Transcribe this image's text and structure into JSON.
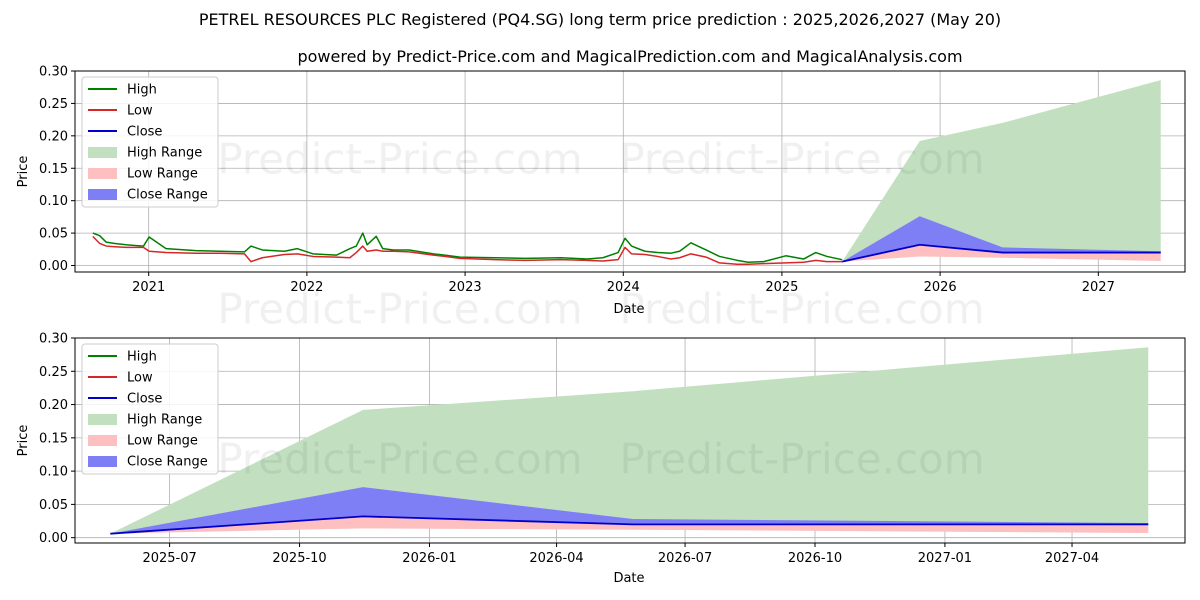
{
  "title": "PETREL RESOURCES PLC Registered (PQ4.SG) long term price prediction : 2025,2026,2027 (May 20)",
  "subtitle": "powered by Predict-Price.com and MagicalPrediction.com and MagicalAnalysis.com",
  "watermark": "Predict-Price.com",
  "colors": {
    "high": "#008000",
    "low": "#d62728",
    "close": "#0000cc",
    "high_range": "#c2e0c0",
    "low_range": "#fdbfbf",
    "close_range": "#7f7ff5",
    "grid": "#b0b0b0"
  },
  "legend": [
    {
      "key": "high",
      "label": "High",
      "kind": "line"
    },
    {
      "key": "low",
      "label": "Low",
      "kind": "line"
    },
    {
      "key": "close",
      "label": "Close",
      "kind": "line"
    },
    {
      "key": "high_range",
      "label": "High Range",
      "kind": "patch"
    },
    {
      "key": "low_range",
      "label": "Low Range",
      "kind": "patch"
    },
    {
      "key": "close_range",
      "label": "Close Range",
      "kind": "patch"
    }
  ],
  "chart_data": [
    {
      "type": "line",
      "xlabel": "Date",
      "ylabel": "Price",
      "xlim": [
        "2020-07-15",
        "2027-07-20"
      ],
      "ylim": [
        -0.01,
        0.3
      ],
      "grid": true,
      "legend_position": "upper-left",
      "x_ticks": [
        {
          "date": "2021-01-01",
          "label": "2021"
        },
        {
          "date": "2022-01-01",
          "label": "2022"
        },
        {
          "date": "2023-01-01",
          "label": "2023"
        },
        {
          "date": "2024-01-01",
          "label": "2024"
        },
        {
          "date": "2025-01-01",
          "label": "2025"
        },
        {
          "date": "2026-01-01",
          "label": "2026"
        },
        {
          "date": "2027-01-01",
          "label": "2027"
        }
      ],
      "y_ticks": [
        {
          "value": 0.0,
          "label": "0.00"
        },
        {
          "value": 0.05,
          "label": "0.05"
        },
        {
          "value": 0.1,
          "label": "0.10"
        },
        {
          "value": 0.15,
          "label": "0.15"
        },
        {
          "value": 0.2,
          "label": "0.20"
        },
        {
          "value": 0.25,
          "label": "0.25"
        },
        {
          "value": 0.3,
          "label": "0.30"
        }
      ],
      "series": [
        {
          "key": "high",
          "name": "High",
          "x": [
            "2020-08-25",
            "2020-09-10",
            "2020-09-25",
            "2020-10-15",
            "2020-11-10",
            "2020-12-20",
            "2021-01-02",
            "2021-02-10",
            "2021-04-20",
            "2021-06-15",
            "2021-08-10",
            "2021-08-25",
            "2021-09-20",
            "2021-11-10",
            "2021-12-10",
            "2022-01-15",
            "2022-03-10",
            "2022-04-10",
            "2022-04-25",
            "2022-05-10",
            "2022-05-20",
            "2022-06-10",
            "2022-06-25",
            "2022-07-20",
            "2022-08-25",
            "2022-10-20",
            "2022-11-15",
            "2022-12-20",
            "2023-03-10",
            "2023-05-20",
            "2023-08-10",
            "2023-10-10",
            "2023-11-15",
            "2023-12-20",
            "2024-01-05",
            "2024-01-20",
            "2024-02-20",
            "2024-03-20",
            "2024-04-20",
            "2024-05-10",
            "2024-06-05",
            "2024-07-10",
            "2024-08-10",
            "2024-09-20",
            "2024-10-15",
            "2024-11-20",
            "2025-01-10",
            "2025-02-20",
            "2025-03-20",
            "2025-04-15",
            "2025-05-20"
          ],
          "values": [
            0.05,
            0.046,
            0.036,
            0.034,
            0.032,
            0.03,
            0.044,
            0.026,
            0.023,
            0.022,
            0.021,
            0.03,
            0.024,
            0.022,
            0.026,
            0.018,
            0.016,
            0.026,
            0.03,
            0.05,
            0.032,
            0.045,
            0.026,
            0.024,
            0.024,
            0.018,
            0.016,
            0.013,
            0.012,
            0.011,
            0.012,
            0.01,
            0.012,
            0.02,
            0.042,
            0.03,
            0.022,
            0.02,
            0.019,
            0.022,
            0.035,
            0.024,
            0.014,
            0.008,
            0.005,
            0.006,
            0.015,
            0.01,
            0.02,
            0.014,
            0.009
          ]
        },
        {
          "key": "low",
          "name": "Low",
          "x": [
            "2020-08-25",
            "2020-09-10",
            "2020-09-25",
            "2020-10-15",
            "2020-11-10",
            "2020-12-20",
            "2021-01-02",
            "2021-02-10",
            "2021-04-20",
            "2021-06-15",
            "2021-08-10",
            "2021-08-25",
            "2021-09-20",
            "2021-11-10",
            "2021-12-10",
            "2022-01-15",
            "2022-03-10",
            "2022-04-10",
            "2022-04-25",
            "2022-05-10",
            "2022-05-20",
            "2022-06-10",
            "2022-06-25",
            "2022-07-20",
            "2022-08-25",
            "2022-10-20",
            "2022-11-15",
            "2022-12-20",
            "2023-03-10",
            "2023-05-20",
            "2023-08-10",
            "2023-10-10",
            "2023-11-15",
            "2023-12-20",
            "2024-01-05",
            "2024-01-20",
            "2024-02-20",
            "2024-03-20",
            "2024-04-20",
            "2024-05-10",
            "2024-06-05",
            "2024-07-10",
            "2024-08-10",
            "2024-09-20",
            "2024-10-15",
            "2024-11-20",
            "2025-01-10",
            "2025-02-20",
            "2025-03-20",
            "2025-04-15",
            "2025-05-20"
          ],
          "values": [
            0.045,
            0.034,
            0.03,
            0.029,
            0.028,
            0.028,
            0.022,
            0.02,
            0.019,
            0.019,
            0.018,
            0.006,
            0.012,
            0.017,
            0.018,
            0.014,
            0.013,
            0.012,
            0.02,
            0.03,
            0.022,
            0.024,
            0.022,
            0.022,
            0.021,
            0.016,
            0.014,
            0.011,
            0.009,
            0.008,
            0.009,
            0.008,
            0.007,
            0.009,
            0.028,
            0.018,
            0.017,
            0.014,
            0.01,
            0.012,
            0.018,
            0.013,
            0.004,
            0.002,
            0.002,
            0.003,
            0.004,
            0.005,
            0.008,
            0.006,
            0.006
          ]
        },
        {
          "key": "close",
          "name": "Close",
          "x": [
            "2025-05-20",
            "2025-11-15",
            "2026-05-25",
            "2027-05-25"
          ],
          "values": [
            0.006,
            0.032,
            0.02,
            0.02
          ]
        },
        {
          "key": "high_range",
          "name": "High Range",
          "x": [
            "2025-05-20",
            "2025-11-15",
            "2026-05-25",
            "2027-05-25"
          ],
          "lower": [
            0.006,
            0.032,
            0.02,
            0.02
          ],
          "upper": [
            0.006,
            0.192,
            0.22,
            0.286
          ]
        },
        {
          "key": "low_range",
          "name": "Low Range",
          "x": [
            "2025-05-20",
            "2025-11-15",
            "2026-05-25",
            "2027-05-25"
          ],
          "lower": [
            0.006,
            0.014,
            0.012,
            0.007
          ],
          "upper": [
            0.006,
            0.032,
            0.02,
            0.02
          ]
        },
        {
          "key": "close_range",
          "name": "Close Range",
          "x": [
            "2025-05-20",
            "2025-11-15",
            "2026-05-25",
            "2027-05-25"
          ],
          "lower": [
            0.006,
            0.032,
            0.02,
            0.02
          ],
          "upper": [
            0.006,
            0.076,
            0.028,
            0.022
          ]
        }
      ]
    },
    {
      "type": "line",
      "xlabel": "Date",
      "ylabel": "Price",
      "xlim": [
        "2025-04-25",
        "2027-06-20"
      ],
      "ylim": [
        -0.008,
        0.3
      ],
      "grid": true,
      "legend_position": "upper-left",
      "x_ticks": [
        {
          "date": "2025-07-01",
          "label": "2025-07"
        },
        {
          "date": "2025-10-01",
          "label": "2025-10"
        },
        {
          "date": "2026-01-01",
          "label": "2026-01"
        },
        {
          "date": "2026-04-01",
          "label": "2026-04"
        },
        {
          "date": "2026-07-01",
          "label": "2026-07"
        },
        {
          "date": "2026-10-01",
          "label": "2026-10"
        },
        {
          "date": "2027-01-01",
          "label": "2027-01"
        },
        {
          "date": "2027-04-01",
          "label": "2027-04"
        }
      ],
      "y_ticks": [
        {
          "value": 0.0,
          "label": "0.00"
        },
        {
          "value": 0.05,
          "label": "0.05"
        },
        {
          "value": 0.1,
          "label": "0.10"
        },
        {
          "value": 0.15,
          "label": "0.15"
        },
        {
          "value": 0.2,
          "label": "0.20"
        },
        {
          "value": 0.25,
          "label": "0.25"
        },
        {
          "value": 0.3,
          "label": "0.30"
        }
      ],
      "series": [
        {
          "key": "close",
          "name": "Close",
          "x": [
            "2025-05-20",
            "2025-11-15",
            "2026-05-25",
            "2027-05-25"
          ],
          "values": [
            0.006,
            0.032,
            0.02,
            0.02
          ]
        },
        {
          "key": "high_range",
          "name": "High Range",
          "x": [
            "2025-05-20",
            "2025-11-15",
            "2026-05-25",
            "2027-05-25"
          ],
          "lower": [
            0.006,
            0.032,
            0.02,
            0.02
          ],
          "upper": [
            0.006,
            0.192,
            0.22,
            0.286
          ]
        },
        {
          "key": "low_range",
          "name": "Low Range",
          "x": [
            "2025-05-20",
            "2025-11-15",
            "2026-05-25",
            "2027-05-25"
          ],
          "lower": [
            0.006,
            0.014,
            0.012,
            0.007
          ],
          "upper": [
            0.006,
            0.032,
            0.02,
            0.02
          ]
        },
        {
          "key": "close_range",
          "name": "Close Range",
          "x": [
            "2025-05-20",
            "2025-11-15",
            "2026-05-25",
            "2027-05-25"
          ],
          "lower": [
            0.006,
            0.032,
            0.02,
            0.02
          ],
          "upper": [
            0.006,
            0.076,
            0.028,
            0.022
          ]
        }
      ]
    }
  ]
}
